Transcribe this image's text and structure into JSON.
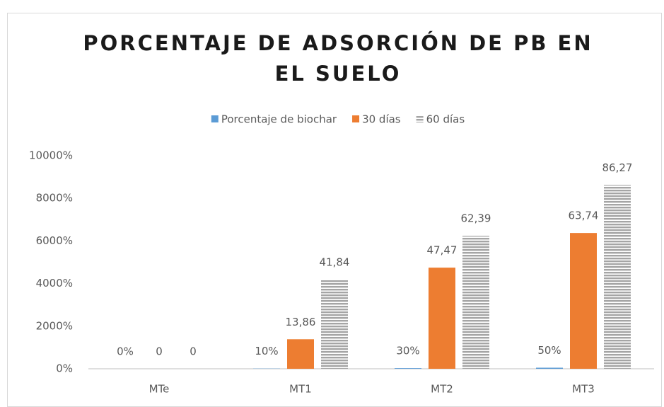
{
  "chart_data": {
    "type": "bar",
    "title": [
      "PORCENTAJE DE ADSORCIÓN DE PB EN",
      "EL SUELO"
    ],
    "categories": [
      "MTe",
      "MT1",
      "MT2",
      "MT3"
    ],
    "series": [
      {
        "name": "Porcentaje de biochar",
        "color": "#5b9bd5",
        "values": [
          0,
          0.1,
          0.3,
          0.5
        ],
        "value_labels": [
          "0%",
          "10%",
          "30%",
          "50%"
        ]
      },
      {
        "name": "30 días",
        "color": "#ed7d31",
        "values": [
          0,
          13.86,
          47.47,
          63.74
        ],
        "value_labels": [
          "0",
          "13,86",
          "47,47",
          "63,74"
        ]
      },
      {
        "name": "60 días",
        "color": "#a5a5a5",
        "values": [
          0,
          41.84,
          62.39,
          86.27
        ],
        "value_labels": [
          "0",
          "41,84",
          "62,39",
          "86,27"
        ]
      }
    ],
    "ylim": [
      0,
      100
    ],
    "yticks": [
      {
        "value": 0,
        "label": "0%"
      },
      {
        "value": 20,
        "label": "2000%"
      },
      {
        "value": 40,
        "label": "4000%"
      },
      {
        "value": 60,
        "label": "6000%"
      },
      {
        "value": 80,
        "label": "8000%"
      },
      {
        "value": 100,
        "label": "10000%"
      }
    ],
    "grid": false,
    "legend": "top"
  }
}
